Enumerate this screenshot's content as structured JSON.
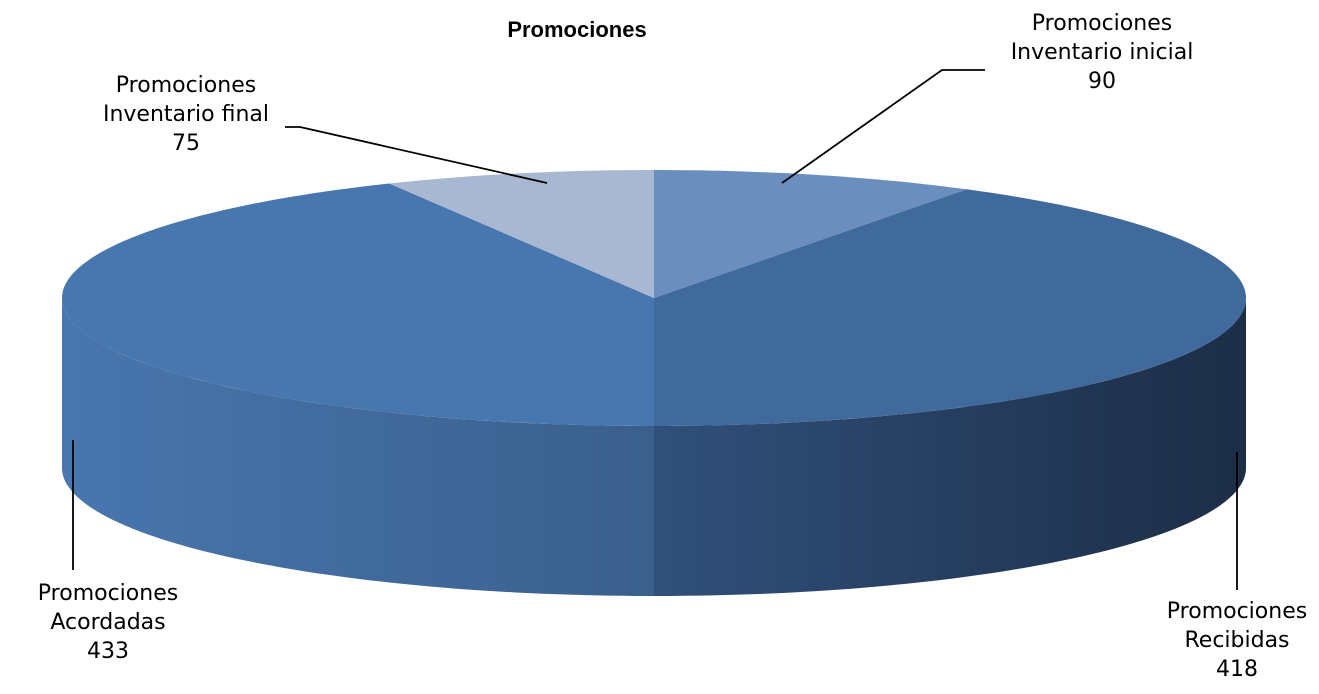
{
  "chart_data": {
    "type": "pie",
    "title": "Promociones",
    "categories": [
      "Promociones Inventario inicial",
      "Promociones Recibidas",
      "Promociones Acordadas",
      "Promociones Inventario final"
    ],
    "values": [
      90,
      418,
      433,
      75
    ],
    "label_lines": [
      [
        "Promociones",
        "Inventario inicial",
        "90"
      ],
      [
        "Promociones",
        "Recibidas",
        "418"
      ],
      [
        "Promociones",
        "Acordadas",
        "433"
      ],
      [
        "Promociones",
        "Inventario final",
        "75"
      ]
    ],
    "colors": [
      "#6a8fbe",
      "#416a9c",
      "#4876ae",
      "#a8b7d2"
    ],
    "style": "3d-exploded-pie",
    "legend": "none"
  }
}
